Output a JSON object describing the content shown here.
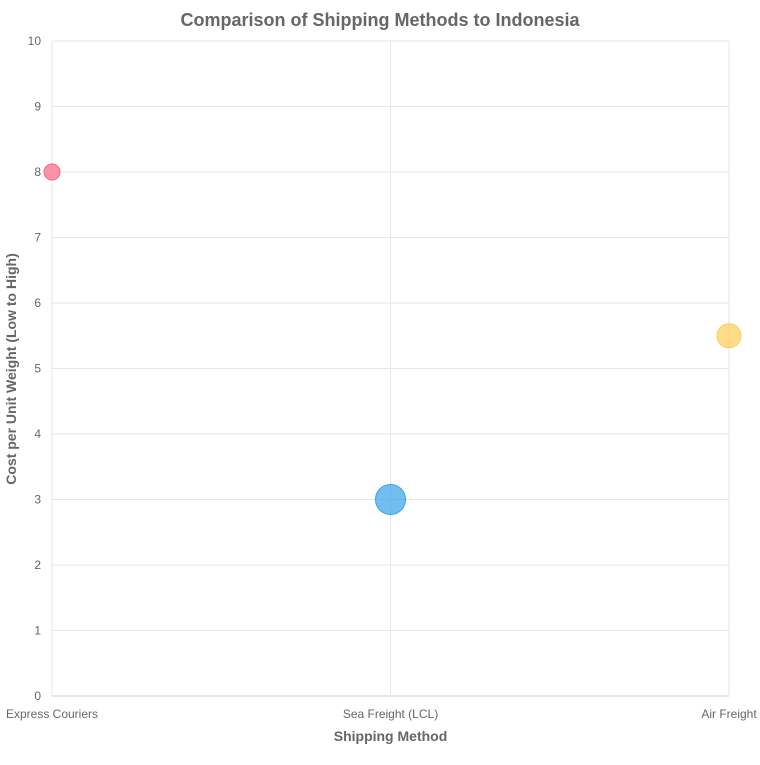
{
  "chart_data": {
    "type": "bubble",
    "title": "Comparison of Shipping Methods to Indonesia",
    "xlabel": "Shipping Method",
    "ylabel": "Cost per Unit Weight (Low to High)",
    "categories": [
      "Express Couriers",
      "Sea Freight (LCL)",
      "Air Freight"
    ],
    "ylim": [
      0,
      10
    ],
    "yticks": [
      "0",
      "1",
      "2",
      "3",
      "4",
      "5",
      "6",
      "7",
      "8",
      "9",
      "10"
    ],
    "grid": true,
    "points": [
      {
        "category": "Express Couriers",
        "y": 8,
        "r": 8,
        "color": "#ff6384"
      },
      {
        "category": "Sea Freight (LCL)",
        "y": 3,
        "r": 15,
        "color": "#36a2eb"
      },
      {
        "category": "Air Freight",
        "y": 5.5,
        "r": 12,
        "color": "#ffcd56"
      }
    ]
  }
}
